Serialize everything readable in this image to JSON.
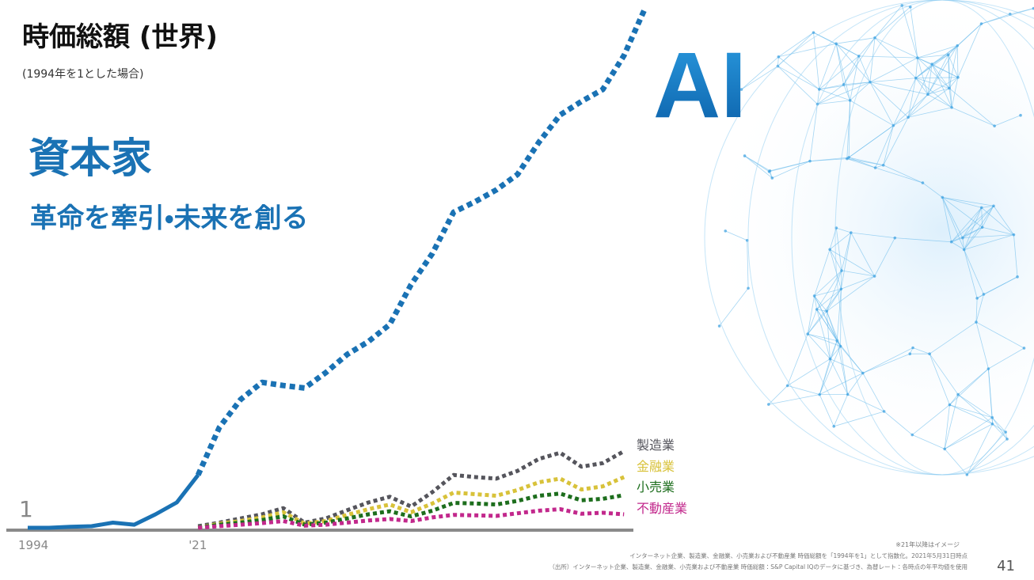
{
  "chart_data": {
    "type": "line",
    "title": "時価総額 (世界)",
    "subtitle": "(1994年を1とした場合)",
    "headline": "資本家",
    "tagline": "革命を牽引・未来を創る",
    "highlight": "AI",
    "categories": [
      "1994",
      null,
      null,
      null,
      null,
      null,
      null,
      null,
      "'21",
      null,
      null,
      null,
      null,
      null,
      null,
      null,
      null,
      null,
      null,
      null,
      null,
      null,
      null,
      null,
      null,
      null,
      null,
      null,
      null,
      null
    ],
    "dashed_after_category": "'21",
    "ylim": [
      1,
      103
    ],
    "yticks": [
      1
    ],
    "series": [
      {
        "name": "AI",
        "color": "#1a72b4",
        "values": [
          1,
          1,
          1.2,
          1.3,
          2,
          1.6,
          3.6,
          5.9,
          11.2,
          20.4,
          25.8,
          29.1,
          28.5,
          28,
          31,
          34.5,
          37,
          40.3,
          48,
          54,
          62,
          64,
          66.3,
          69.3,
          75.5,
          80.8,
          83.4,
          85.7,
          92.3,
          101.5
        ]
      },
      {
        "name": "製造業",
        "color": "#55555c",
        "values": [
          null,
          null,
          null,
          null,
          null,
          null,
          null,
          null,
          1.3,
          2,
          2.8,
          3.6,
          4.8,
          2,
          2.8,
          4.4,
          5.9,
          7,
          5.1,
          7.9,
          11.2,
          10.8,
          10.5,
          12,
          14.3,
          15.5,
          12.8,
          13.5,
          15.8,
          null
        ]
      },
      {
        "name": "金融業",
        "color": "#d8c23a",
        "values": [
          null,
          null,
          null,
          null,
          null,
          null,
          null,
          null,
          1,
          1.8,
          2.3,
          3,
          4,
          1.8,
          2.3,
          3.5,
          4.6,
          5.5,
          4,
          5.7,
          7.8,
          7.5,
          7.2,
          8.3,
          9.8,
          10.5,
          8.4,
          9,
          10.8,
          null
        ]
      },
      {
        "name": "小売業",
        "color": "#1d6e1d",
        "values": [
          null,
          null,
          null,
          null,
          null,
          null,
          null,
          null,
          1,
          1.6,
          2,
          2.5,
          3.2,
          1.6,
          2,
          2.8,
          3.6,
          4.2,
          3.2,
          4.3,
          5.8,
          5.7,
          5.5,
          6.2,
          7.2,
          7.6,
          6.3,
          6.6,
          7.3,
          null
        ]
      },
      {
        "name": "不動産業",
        "color": "#c2288c",
        "values": [
          null,
          null,
          null,
          null,
          null,
          null,
          null,
          null,
          1,
          1.3,
          1.6,
          1.9,
          2.3,
          1.4,
          1.6,
          2,
          2.4,
          2.7,
          2.3,
          3,
          3.5,
          3.4,
          3.3,
          3.8,
          4.3,
          4.6,
          3.7,
          3.9,
          3.6,
          null
        ]
      }
    ],
    "note": "※21年以降はイメージ",
    "source": [
      "インターネット企業、製造業、金融業、小売業および不動産業 時価総額を「1994年を1」として指数化。2021年5月31日時点",
      "（出所）インターネット企業、製造業、金融業、小売業および不動産業 時価総額：S&P Capital IQのデータに基づき、為替レート：各時点の年平均値を使用"
    ],
    "page_number": "41"
  }
}
